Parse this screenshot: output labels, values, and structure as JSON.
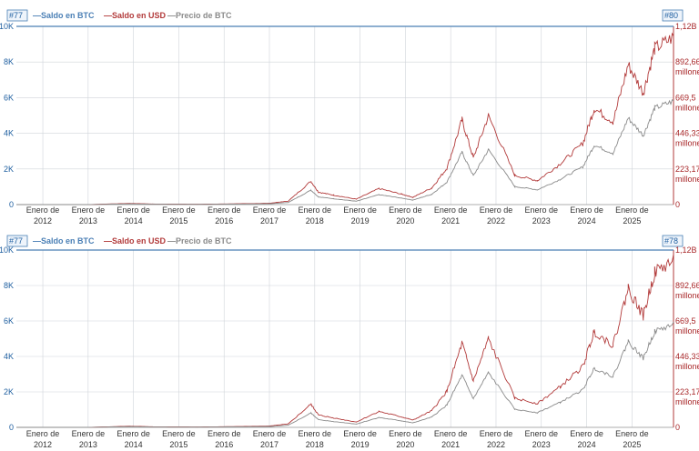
{
  "colors": {
    "saldo_btc": "#4a7fb5",
    "saldo_usd": "#b23a3a",
    "precio_btc": "#8a8a8a",
    "grid": "#d0d4da",
    "badge": "#4a7fb5"
  },
  "legend": [
    {
      "label": "—Saldo en BTC",
      "color_key": "saldo_btc"
    },
    {
      "label": "—Saldo en USD",
      "color_key": "saldo_usd"
    },
    {
      "label": "—Precio de BTC",
      "color_key": "precio_btc"
    }
  ],
  "x_tick_labels": [
    [
      "Enero de",
      "2012"
    ],
    [
      "Enero de",
      "2013"
    ],
    [
      "Enero de",
      "2014"
    ],
    [
      "Enero de",
      "2015"
    ],
    [
      "Enero de",
      "2016"
    ],
    [
      "Enero de",
      "2017"
    ],
    [
      "Enero de",
      "2018"
    ],
    [
      "Enero de",
      "2019"
    ],
    [
      "Enero de",
      "2020"
    ],
    [
      "Enero de",
      "2021"
    ],
    [
      "Enero de",
      "2022"
    ],
    [
      "Enero de",
      "2023"
    ],
    [
      "Enero de",
      "2024"
    ],
    [
      "Enero de",
      "2025"
    ]
  ],
  "y_left_labels": [
    "10K",
    "8K",
    "6K",
    "4K",
    "2K",
    "0"
  ],
  "y_right_labels": [
    [
      "1,12B"
    ],
    [
      "892,66",
      "millones"
    ],
    [
      "669,5",
      "millones"
    ],
    [
      "446,33",
      "millones"
    ],
    [
      "223,17",
      "millones"
    ],
    [
      "0"
    ]
  ],
  "chart_data": [
    {
      "type": "line",
      "badge_left": "#77",
      "badge_right": "#80",
      "x_range": [
        "2011-06",
        "2025-12"
      ],
      "y_left_range": [
        0,
        10000
      ],
      "y_right_range": [
        0,
        1120000000
      ],
      "series": [
        {
          "name": "Saldo en BTC",
          "values": [
            11500,
            11500
          ]
        },
        {
          "name": "Saldo en USD",
          "x": [
            "2011-06",
            "2013-01",
            "2013-12",
            "2014-06",
            "2015-06",
            "2016-06",
            "2017-01",
            "2017-06",
            "2017-12",
            "2018-02",
            "2018-06",
            "2018-12",
            "2019-06",
            "2019-12",
            "2020-03",
            "2020-08",
            "2020-12",
            "2021-04",
            "2021-07",
            "2021-11",
            "2022-06",
            "2022-12",
            "2023-06",
            "2023-12",
            "2024-03",
            "2024-08",
            "2024-12",
            "2025-04",
            "2025-07",
            "2025-12"
          ],
          "values": [
            0,
            10,
            800,
            400,
            250,
            600,
            900,
            2400,
            16000,
            8500,
            6500,
            3700,
            11000,
            7200,
            5000,
            11500,
            25000,
            58000,
            32000,
            61000,
            20000,
            16500,
            28000,
            42000,
            66000,
            57000,
            96000,
            77000,
            107000,
            115000
          ]
        },
        {
          "name": "Precio de BTC",
          "x": [
            "2011-06",
            "2013-01",
            "2013-12",
            "2014-06",
            "2015-06",
            "2016-06",
            "2017-01",
            "2017-06",
            "2017-12",
            "2018-02",
            "2018-06",
            "2018-12",
            "2019-06",
            "2019-12",
            "2020-03",
            "2020-08",
            "2020-12",
            "2021-04",
            "2021-07",
            "2021-11",
            "2022-06",
            "2022-12",
            "2023-06",
            "2023-12",
            "2024-03",
            "2024-08",
            "2024-12",
            "2025-04",
            "2025-07",
            "2025-12"
          ],
          "values": [
            0,
            10,
            800,
            400,
            250,
            600,
            900,
            2400,
            16000,
            8500,
            6500,
            3700,
            11000,
            7200,
            5000,
            11500,
            25000,
            58000,
            32000,
            61000,
            20000,
            16500,
            28000,
            42000,
            66000,
            57000,
            96000,
            77000,
            107000,
            115000
          ]
        }
      ]
    },
    {
      "type": "line",
      "badge_left": "#77",
      "badge_right": "#78",
      "x_range": [
        "2011-06",
        "2025-12"
      ],
      "y_left_range": [
        0,
        10000
      ],
      "y_right_range": [
        0,
        1120000000
      ],
      "series": [
        {
          "name": "Saldo en BTC",
          "values": [
            11500,
            11500
          ]
        },
        {
          "name": "Saldo en USD",
          "x": [
            "2011-06",
            "2013-01",
            "2013-12",
            "2014-06",
            "2015-06",
            "2016-06",
            "2017-01",
            "2017-06",
            "2017-12",
            "2018-02",
            "2018-06",
            "2018-12",
            "2019-06",
            "2019-12",
            "2020-03",
            "2020-08",
            "2020-12",
            "2021-04",
            "2021-07",
            "2021-11",
            "2022-06",
            "2022-12",
            "2023-06",
            "2023-12",
            "2024-03",
            "2024-08",
            "2024-12",
            "2025-04",
            "2025-07",
            "2025-12"
          ],
          "values": [
            0,
            10,
            800,
            400,
            250,
            600,
            900,
            2400,
            16000,
            8500,
            6500,
            3700,
            11000,
            7200,
            5000,
            11500,
            25000,
            58000,
            32000,
            61000,
            20000,
            16500,
            28000,
            42000,
            66000,
            57000,
            96000,
            77000,
            107000,
            115000
          ]
        },
        {
          "name": "Precio de BTC",
          "x": [
            "2011-06",
            "2013-01",
            "2013-12",
            "2014-06",
            "2015-06",
            "2016-06",
            "2017-01",
            "2017-06",
            "2017-12",
            "2018-02",
            "2018-06",
            "2018-12",
            "2019-06",
            "2019-12",
            "2020-03",
            "2020-08",
            "2020-12",
            "2021-04",
            "2021-07",
            "2021-11",
            "2022-06",
            "2022-12",
            "2023-06",
            "2023-12",
            "2024-03",
            "2024-08",
            "2024-12",
            "2025-04",
            "2025-07",
            "2025-12"
          ],
          "values": [
            0,
            10,
            800,
            400,
            250,
            600,
            900,
            2400,
            16000,
            8500,
            6500,
            3700,
            11000,
            7200,
            5000,
            11500,
            25000,
            58000,
            32000,
            61000,
            20000,
            16500,
            28000,
            42000,
            66000,
            57000,
            96000,
            77000,
            107000,
            115000
          ]
        }
      ]
    }
  ]
}
